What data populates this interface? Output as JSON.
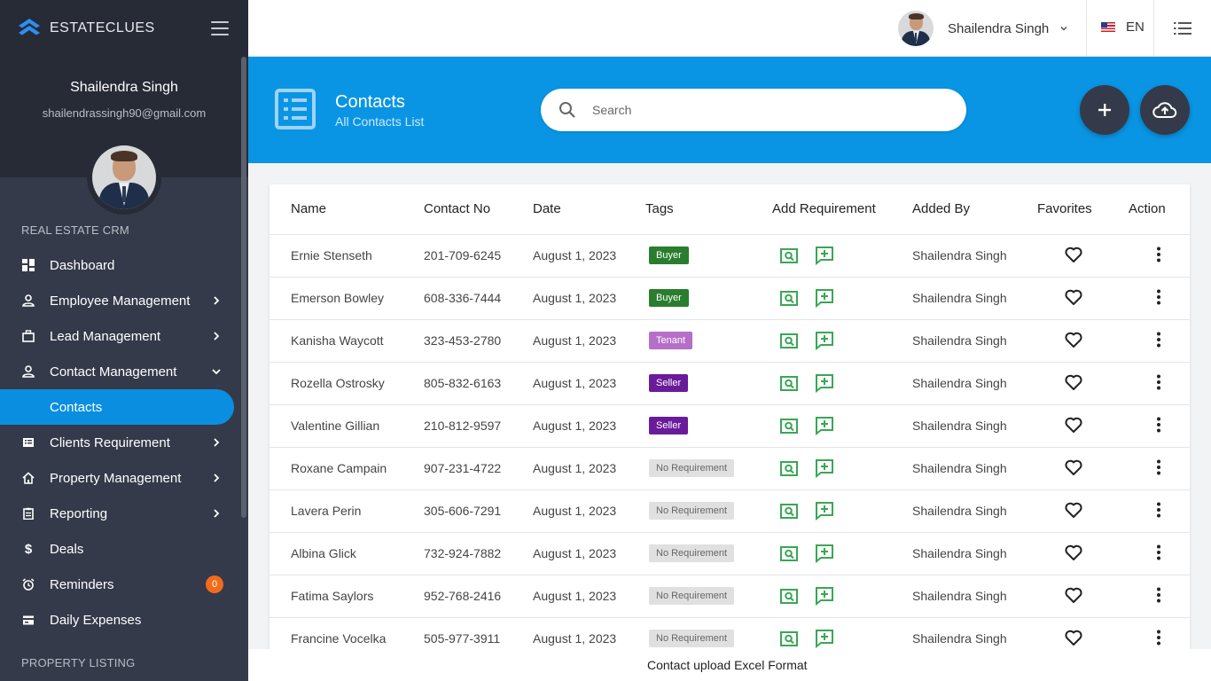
{
  "brand": {
    "name": "ESTATECLUES"
  },
  "profile": {
    "name": "Shailendra Singh",
    "email": "shailendrassingh90@gmail.com"
  },
  "sections": {
    "crm": "REAL ESTATE CRM",
    "listing": "PROPERTY LISTING"
  },
  "menu": [
    {
      "label": "Dashboard",
      "icon": "dashboard-icon"
    },
    {
      "label": "Employee Management",
      "icon": "person-icon"
    },
    {
      "label": "Lead Management",
      "icon": "briefcase-icon"
    },
    {
      "label": "Contact Management",
      "icon": "person-icon"
    },
    {
      "label": "Contacts"
    },
    {
      "label": "Clients Requirement",
      "icon": "list-icon"
    },
    {
      "label": "Property Management",
      "icon": "home-icon"
    },
    {
      "label": "Reporting",
      "icon": "clipboard-icon"
    },
    {
      "label": "Deals",
      "icon": "dollar-icon"
    },
    {
      "label": "Reminders",
      "icon": "alarm-icon",
      "badge": "0"
    },
    {
      "label": "Daily Expenses",
      "icon": "wallet-icon"
    }
  ],
  "topbar": {
    "user_name": "Shailendra Singh",
    "language": "EN"
  },
  "header": {
    "title": "Contacts",
    "subtitle": "All Contacts List"
  },
  "search": {
    "placeholder": "Search",
    "value": ""
  },
  "colors": {
    "accent": "#0a95e4",
    "sidebar": "#343a49",
    "buyer": "#2a7d2e",
    "tenant": "#b56fc9",
    "seller": "#6a1b9a",
    "icon_green": "#3aa655"
  },
  "table": {
    "columns": [
      "Name",
      "Contact No",
      "Date",
      "Tags",
      "Add Requirement",
      "Added By",
      "Favorites",
      "Action"
    ],
    "rows": [
      {
        "name": "Ernie Stenseth",
        "phone": "201-709-6245",
        "date": "August 1, 2023",
        "tag": "Buyer",
        "tag_type": "buyer",
        "added_by": "Shailendra Singh"
      },
      {
        "name": "Emerson Bowley",
        "phone": "608-336-7444",
        "date": "August 1, 2023",
        "tag": "Buyer",
        "tag_type": "buyer",
        "added_by": "Shailendra Singh"
      },
      {
        "name": "Kanisha Waycott",
        "phone": "323-453-2780",
        "date": "August 1, 2023",
        "tag": "Tenant",
        "tag_type": "tenant",
        "added_by": "Shailendra Singh"
      },
      {
        "name": "Rozella Ostrosky",
        "phone": "805-832-6163",
        "date": "August 1, 2023",
        "tag": "Seller",
        "tag_type": "seller",
        "added_by": "Shailendra Singh"
      },
      {
        "name": "Valentine Gillian",
        "phone": "210-812-9597",
        "date": "August 1, 2023",
        "tag": "Seller",
        "tag_type": "seller",
        "added_by": "Shailendra Singh"
      },
      {
        "name": "Roxane Campain",
        "phone": "907-231-4722",
        "date": "August 1, 2023",
        "tag": "No Requirement",
        "tag_type": "none",
        "added_by": "Shailendra Singh"
      },
      {
        "name": "Lavera Perin",
        "phone": "305-606-7291",
        "date": "August 1, 2023",
        "tag": "No Requirement",
        "tag_type": "none",
        "added_by": "Shailendra Singh"
      },
      {
        "name": "Albina Glick",
        "phone": "732-924-7882",
        "date": "August 1, 2023",
        "tag": "No Requirement",
        "tag_type": "none",
        "added_by": "Shailendra Singh"
      },
      {
        "name": "Fatima Saylors",
        "phone": "952-768-2416",
        "date": "August 1, 2023",
        "tag": "No Requirement",
        "tag_type": "none",
        "added_by": "Shailendra Singh"
      },
      {
        "name": "Francine Vocelka",
        "phone": "505-977-3911",
        "date": "August 1, 2023",
        "tag": "No Requirement",
        "tag_type": "none",
        "added_by": "Shailendra Singh"
      }
    ]
  },
  "footer": {
    "text": "Contact upload Excel Format"
  }
}
